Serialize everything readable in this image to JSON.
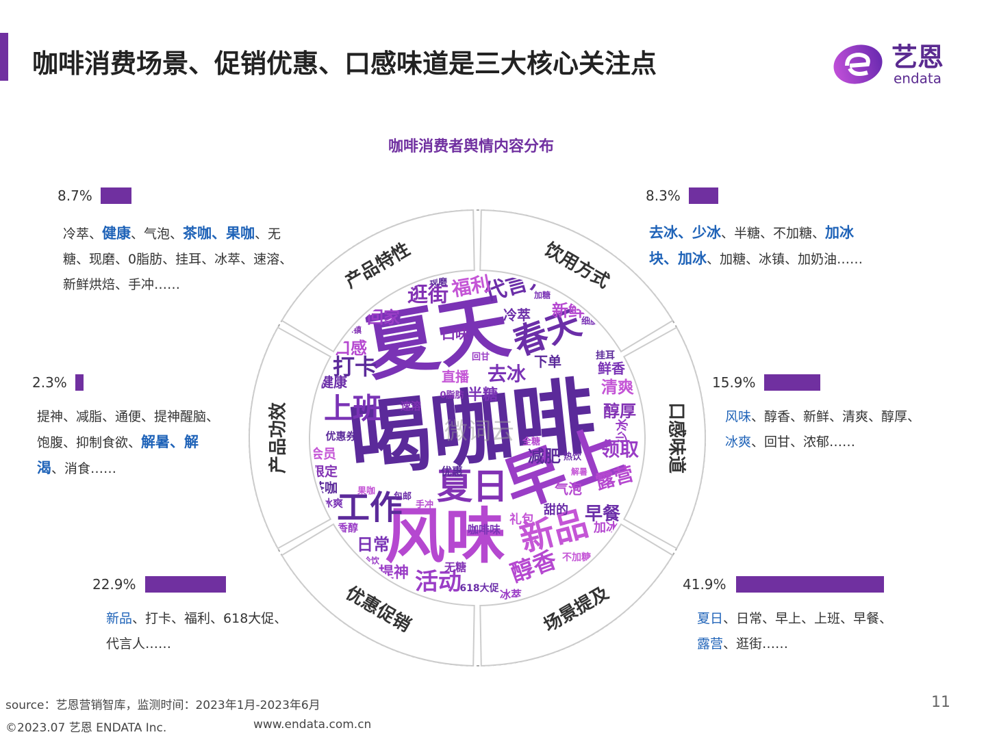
{
  "header": {
    "title": "咖啡消费场景、促销优惠、口感味道是三大核心关注点",
    "logo": {
      "name": "艺恩",
      "sub": "endata"
    }
  },
  "subtitle": "咖啡消费者舆情内容分布",
  "segments": [
    {
      "name": "产品特性",
      "value": 8.7,
      "value_label": "8.7%",
      "keywords": [
        {
          "text": "冷萃、",
          "style": "plain"
        },
        {
          "text": "健康",
          "style": "blue-bold"
        },
        {
          "text": "、气泡、",
          "style": "plain"
        },
        {
          "text": "茶咖、果咖",
          "style": "blue-bold"
        },
        {
          "text": "、无糖、现磨、0脂肪、挂耳、冰萃、速溶、新鲜烘焙、手冲……",
          "style": "plain"
        }
      ]
    },
    {
      "name": "饮用方式",
      "value": 8.3,
      "value_label": "8.3%",
      "keywords": [
        {
          "text": "去冰、少冰",
          "style": "blue-bold"
        },
        {
          "text": "、半糖、不加糖、",
          "style": "plain"
        },
        {
          "text": "加冰块、加冰",
          "style": "blue-bold"
        },
        {
          "text": "、加糖、冰镇、加奶油……",
          "style": "plain"
        }
      ]
    },
    {
      "name": "口感味道",
      "value": 15.9,
      "value_label": "15.9%",
      "keywords": [
        {
          "text": "风味",
          "style": "blue"
        },
        {
          "text": "、醇香、新鲜、清爽、醇厚、",
          "style": "plain"
        },
        {
          "text": "冰爽",
          "style": "blue"
        },
        {
          "text": "、回甘、浓郁……",
          "style": "plain"
        }
      ]
    },
    {
      "name": "场景提及",
      "value": 41.9,
      "value_label": "41.9%",
      "keywords": [
        {
          "text": "夏日",
          "style": "blue"
        },
        {
          "text": "、日常、早上、上班、早餐、",
          "style": "plain"
        },
        {
          "text": "露营",
          "style": "blue"
        },
        {
          "text": "、逛街……",
          "style": "plain"
        }
      ]
    },
    {
      "name": "优惠促销",
      "value": 22.9,
      "value_label": "22.9%",
      "keywords": [
        {
          "text": "新品",
          "style": "blue"
        },
        {
          "text": "、打卡、福利、618大促、代言人……",
          "style": "plain"
        }
      ]
    },
    {
      "name": "产品功效",
      "value": 2.3,
      "value_label": "2.3%",
      "keywords": [
        {
          "text": "提神、减脂、通便、提神醒脑、饱腹、抑制食欲、",
          "style": "plain"
        },
        {
          "text": "解暑、解渴",
          "style": "blue-bold"
        },
        {
          "text": "、消食……",
          "style": "plain"
        }
      ]
    }
  ],
  "word_cloud": {
    "words": [
      "喝咖啡",
      "夏天",
      "早上",
      "风味",
      "春天",
      "新品",
      "夏日",
      "工作",
      "上班",
      "活动",
      "醇香",
      "代言人",
      "福利",
      "逛街",
      "打卡",
      "去冰",
      "领取",
      "露营",
      "早餐",
      "清爽",
      "醇厚",
      "减肥",
      "半糖",
      "回家",
      "口感",
      "健康",
      "会员",
      "限定",
      "茶咖",
      "日常",
      "提神",
      "新鲜",
      "冷萃",
      "直播",
      "口味",
      "下单",
      "鲜香",
      "少冰",
      "加冰",
      "甜的",
      "礼包",
      "无糖",
      "优惠",
      "咖啡味",
      "冰萃",
      "气泡",
      "618大促",
      "不加糖",
      "速溶",
      "优惠券",
      "冰爽",
      "香醇",
      "手冲",
      "包邮",
      "果咖",
      "0脂肪",
      "挂耳",
      "细腻",
      "回甘",
      "全糖",
      "热饮",
      "解暑",
      "冰镇",
      "现磨",
      "加糖",
      "冷饮"
    ],
    "watermark": "微词云"
  },
  "footer": {
    "source": "source：艺恩营销智库，监测时间：2023年1月-2023年6月",
    "copyright": "©2023.07 艺恩 ENDATA Inc.",
    "website": "www.endata.com.cn",
    "page": 11
  }
}
